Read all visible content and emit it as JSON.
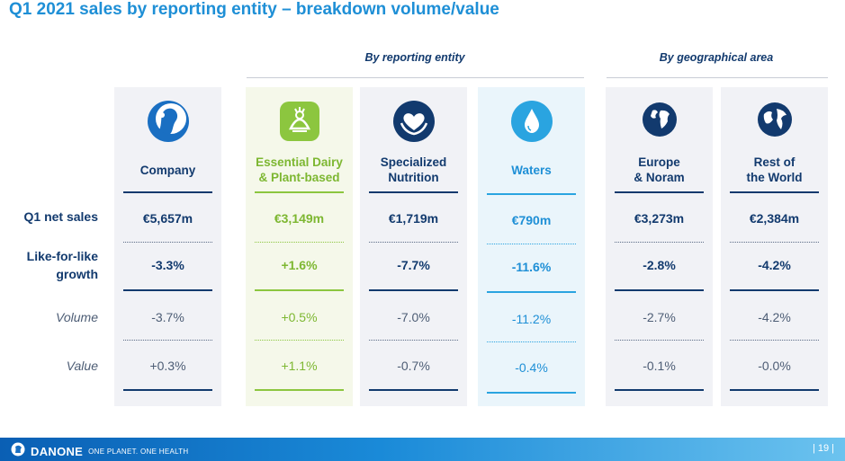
{
  "title": "Q1 2021 sales by reporting entity – breakdown volume/value",
  "groups": {
    "entity": "By reporting entity",
    "geo": "By geographical area"
  },
  "row_labels": {
    "net_sales": "Q1 net sales",
    "lfl_line1": "Like-for-like",
    "lfl_line2": "growth",
    "volume": "Volume",
    "value": "Value"
  },
  "columns": [
    {
      "title1": "Company",
      "title2": "",
      "net_sales": "€5,657m",
      "lfl": "-3.3%",
      "volume": "-3.7%",
      "value": "+0.3%",
      "icon": "company-logo-icon"
    },
    {
      "title1": "Essential Dairy",
      "title2": "& Plant-based",
      "net_sales": "€3,149m",
      "lfl": "+1.6%",
      "volume": "+0.5%",
      "value": "+1.1%",
      "icon": "dairy-plant-icon"
    },
    {
      "title1": "Specialized",
      "title2": "Nutrition",
      "net_sales": "€1,719m",
      "lfl": "-7.7%",
      "volume": "-7.0%",
      "value": "-0.7%",
      "icon": "heart-hands-icon"
    },
    {
      "title1": "Waters",
      "title2": "",
      "net_sales": "€790m",
      "lfl": "-11.6%",
      "volume": "-11.2%",
      "value": "-0.4%",
      "icon": "water-drop-icon"
    },
    {
      "title1": "Europe",
      "title2": "& Noram",
      "net_sales": "€3,273m",
      "lfl": "-2.8%",
      "volume": "-2.7%",
      "value": "-0.1%",
      "icon": "europe-globe-icon"
    },
    {
      "title1": "Rest of",
      "title2": "the World",
      "net_sales": "€2,384m",
      "lfl": "-4.2%",
      "volume": "-4.2%",
      "value": "-0.0%",
      "icon": "world-globe-icon"
    }
  ],
  "footer": {
    "brand": "DANONE",
    "tagline": "ONE PLANET. ONE HEALTH",
    "page": "| 19 |"
  },
  "colors": {
    "navy": "#123a6e",
    "blue": "#1e8fd6",
    "green": "#7db731",
    "water_blue": "#2aa4e0"
  }
}
